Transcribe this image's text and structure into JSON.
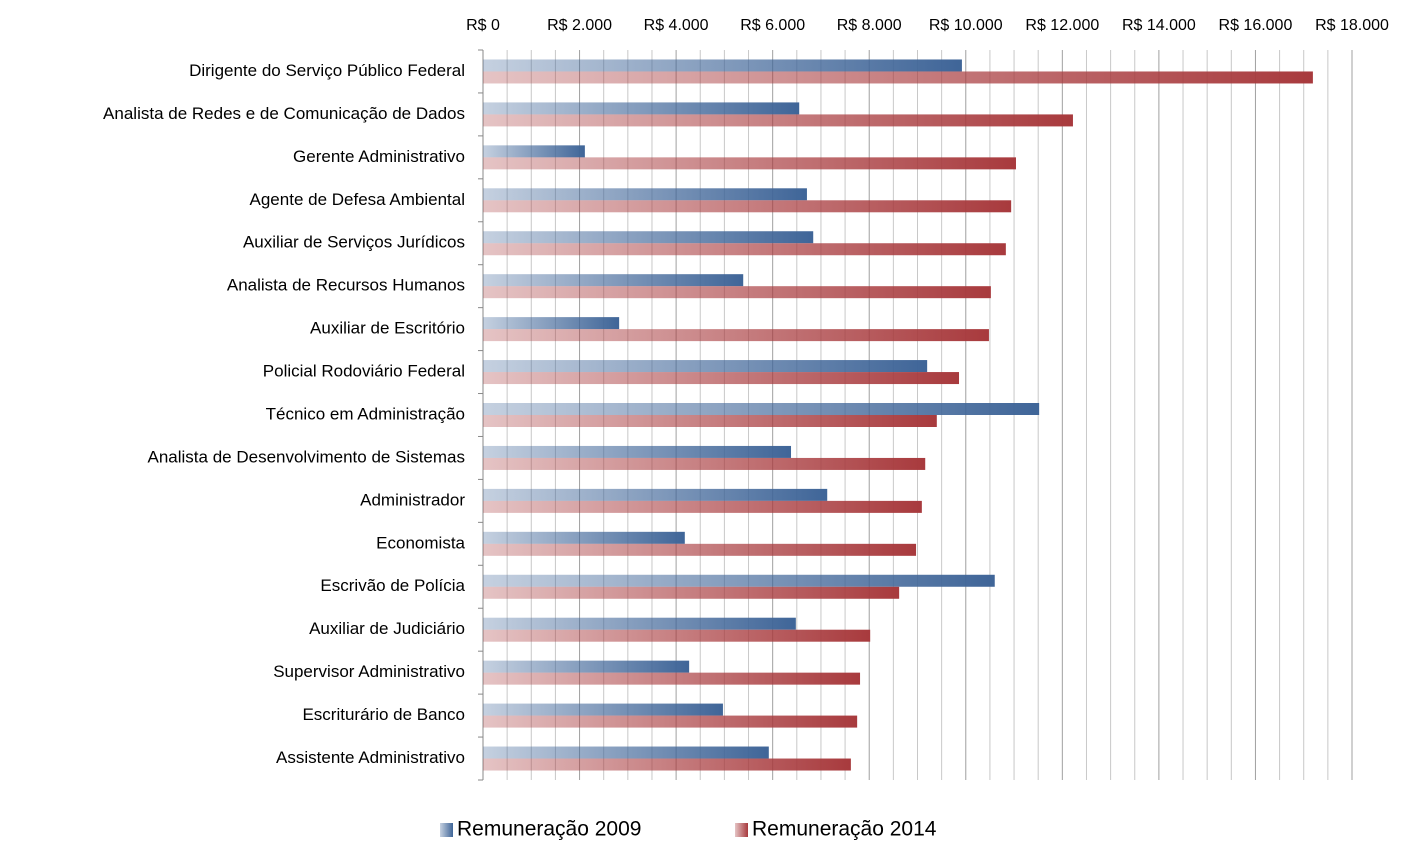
{
  "chart_data": {
    "type": "bar",
    "orientation": "horizontal",
    "categories": [
      "Dirigente do Serviço Público Federal",
      "Analista de Redes e de Comunicação de Dados",
      "Gerente Administrativo",
      "Agente de Defesa Ambiental",
      "Auxiliar de Serviços Jurídicos",
      "Analista de Recursos Humanos",
      "Auxiliar de Escritório",
      "Policial Rodoviário Federal",
      "Técnico em Administração",
      "Analista de Desenvolvimento de Sistemas",
      "Administrador",
      "Economista",
      "Escrivão de Polícia",
      "Auxiliar de Judiciário",
      "Supervisor Administrativo",
      "Escriturário de Banco",
      "Assistente Administrativo"
    ],
    "series": [
      {
        "name": "Remuneração 2009",
        "color": "#3f6598",
        "values": [
          9920,
          6550,
          2110,
          6710,
          6840,
          5390,
          2820,
          9200,
          11520,
          6380,
          7130,
          4180,
          10600,
          6480,
          4270,
          4970,
          5920
        ]
      },
      {
        "name": "Remuneração 2014",
        "color": "#a83a3d",
        "values": [
          17190,
          12220,
          11040,
          10940,
          10830,
          10520,
          10480,
          9860,
          9400,
          9160,
          9090,
          8970,
          8620,
          8020,
          7810,
          7750,
          7620
        ]
      }
    ],
    "xlim": [
      0,
      18000
    ],
    "xticks": [
      {
        "value": 0,
        "label": "R$ 0"
      },
      {
        "value": 2000,
        "label": "R$ 2.000"
      },
      {
        "value": 4000,
        "label": "R$ 4.000"
      },
      {
        "value": 6000,
        "label": "R$ 6.000"
      },
      {
        "value": 8000,
        "label": "R$ 8.000"
      },
      {
        "value": 10000,
        "label": "R$ 10.000"
      },
      {
        "value": 12000,
        "label": "R$ 12.000"
      },
      {
        "value": 14000,
        "label": "R$ 14.000"
      },
      {
        "value": 16000,
        "label": "R$ 16.000"
      },
      {
        "value": 18000,
        "label": "R$ 18.000"
      }
    ],
    "minor_xticks": [
      500,
      1000,
      1500,
      2500,
      3000,
      3500,
      4500,
      5000,
      5500,
      6500,
      7000,
      7500,
      8500,
      9000,
      9500,
      10500,
      11000,
      11500,
      12500,
      13000,
      13500,
      14500,
      15000,
      15500,
      16500,
      17000,
      17500
    ],
    "grid": true,
    "legend": "bottom"
  }
}
